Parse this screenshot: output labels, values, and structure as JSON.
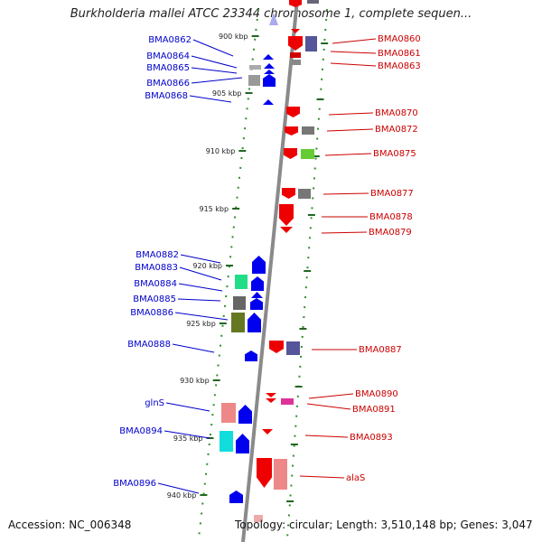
{
  "title": "Burkholderia mallei ATCC 23344 chromosome 1, complete sequen...",
  "footer": {
    "accession": "Accession: NC_006348",
    "stats": "Topology: circular; Length: 3,510,148 bp; Genes: 3,047"
  },
  "colors": {
    "left_label": "#0000cc",
    "right_label": "#cc0000",
    "axis": "#888888",
    "tick": "#226622"
  },
  "ticks": [
    "900 kbp",
    "905 kbp",
    "910 kbp",
    "915 kbp",
    "920 kbp",
    "925 kbp",
    "930 kbp",
    "935 kbp",
    "940 kbp"
  ],
  "left_genes": [
    "BMA0862",
    "BMA0864",
    "BMA0865",
    "BMA0866",
    "BMA0868",
    "BMA0882",
    "BMA0883",
    "BMA0884",
    "BMA0885",
    "BMA0886",
    "BMA0888",
    "glnS",
    "BMA0894",
    "BMA0896"
  ],
  "right_genes": [
    "BMA0860",
    "BMA0861",
    "BMA0863",
    "BMA0870",
    "BMA0872",
    "BMA0875",
    "BMA0877",
    "BMA0878",
    "BMA0879",
    "BMA0887",
    "BMA0890",
    "BMA0891",
    "BMA0893",
    "alaS"
  ]
}
